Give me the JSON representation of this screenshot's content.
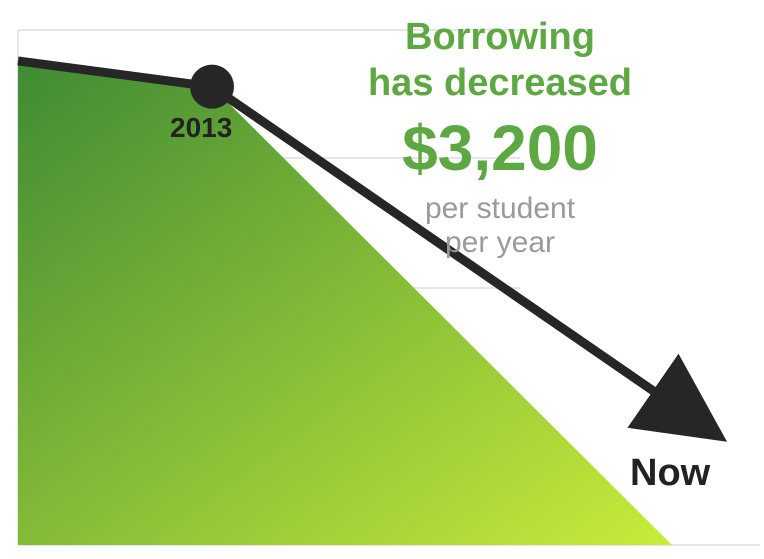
{
  "headline": {
    "line1": "Borrowing",
    "line2": "has decreased",
    "amount": "$3,200",
    "sub1": "per student",
    "sub2": "per year"
  },
  "colors": {
    "accent_green": "#5da842",
    "line": "#262626",
    "fill_top": "#3f8a34",
    "fill_bottom": "#c9ec3a",
    "subtext": "#9a9a9a"
  },
  "chart_data": {
    "type": "area",
    "x": [
      "",
      "2013",
      "Now"
    ],
    "series": [
      {
        "values": [
          4700,
          4450,
          1250
        ]
      }
    ],
    "annotations": [
      "2013",
      "Now"
    ],
    "grid": true,
    "ylim": [
      0,
      5000
    ]
  }
}
